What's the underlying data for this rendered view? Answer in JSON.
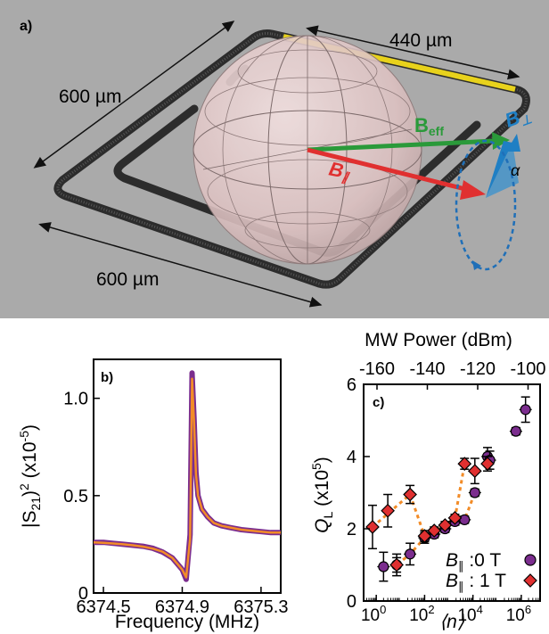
{
  "panel_a": {
    "label": "a)",
    "dim_left": "600 µm",
    "dim_bottom": "600 µm",
    "dim_top": "440 µm",
    "vec_eff_main": "B",
    "vec_eff_sub": "eff",
    "vec_par": "B",
    "vec_par_sub": "∥",
    "vec_perp": "B",
    "vec_perp_sub": "⊥",
    "angle": "α",
    "colors": {
      "background": "#a8a8a8",
      "resonator": "#3a3a3a",
      "highlight": "#e8d21c",
      "beff": "#2a9a3a",
      "bpar": "#e03030",
      "bperp": "#1f7fc4",
      "sphere": "#e8caca"
    }
  },
  "chart_data": [
    {
      "panel": "b)",
      "type": "line",
      "xlabel": "Frequency (MHz)",
      "ylabel_base": "|S",
      "ylabel_sub": "21",
      "ylabel_sup": "2",
      "ylabel_unit": " (x10",
      "ylabel_unit_sup": "-5",
      "ylabel_close": ")",
      "xticks": [
        "6374.5",
        "6374.9",
        "6375.3"
      ],
      "xtick_values": [
        6374.5,
        6374.9,
        6375.3
      ],
      "yticks": [
        "0",
        "0.5",
        "1.0"
      ],
      "ytick_values": [
        0,
        0.5,
        1.0
      ],
      "xlim": [
        6374.45,
        6375.4
      ],
      "ylim": [
        0,
        1.2
      ],
      "series": [
        {
          "role": "data",
          "color": "#7b2d8e",
          "x": [
            6374.45,
            6374.5,
            6374.55,
            6374.6,
            6374.65,
            6374.7,
            6374.75,
            6374.8,
            6374.85,
            6374.9,
            6374.92,
            6374.94,
            6374.95,
            6374.96,
            6374.97,
            6374.98,
            6375.0,
            6375.03,
            6375.06,
            6375.1,
            6375.15,
            6375.2,
            6375.25,
            6375.3,
            6375.35,
            6375.4
          ],
          "y": [
            0.26,
            0.26,
            0.255,
            0.25,
            0.245,
            0.24,
            0.23,
            0.21,
            0.18,
            0.12,
            0.07,
            0.3,
            1.13,
            0.9,
            0.62,
            0.5,
            0.43,
            0.39,
            0.36,
            0.345,
            0.335,
            0.325,
            0.32,
            0.315,
            0.31,
            0.31
          ]
        },
        {
          "role": "fit",
          "color": "#f28c28",
          "x": [
            6374.45,
            6374.5,
            6374.55,
            6374.6,
            6374.65,
            6374.7,
            6374.75,
            6374.8,
            6374.85,
            6374.9,
            6374.92,
            6374.94,
            6374.95,
            6374.96,
            6374.97,
            6374.98,
            6375.0,
            6375.03,
            6375.06,
            6375.1,
            6375.15,
            6375.2,
            6375.25,
            6375.3,
            6375.35,
            6375.4
          ],
          "y": [
            0.26,
            0.258,
            0.254,
            0.25,
            0.245,
            0.238,
            0.228,
            0.212,
            0.18,
            0.12,
            0.08,
            0.28,
            1.1,
            0.88,
            0.61,
            0.5,
            0.43,
            0.39,
            0.36,
            0.345,
            0.335,
            0.325,
            0.32,
            0.315,
            0.31,
            0.31
          ]
        }
      ]
    },
    {
      "panel": "c)",
      "type": "scatter",
      "top_axis_label": "MW Power (dBm)",
      "top_ticks": [
        "-160",
        "-140",
        "-120",
        "-100"
      ],
      "xlabel": "⟨n⟩",
      "ylabel_main": "Q",
      "ylabel_sub": "L",
      "ylabel_unit": " (x10",
      "ylabel_unit_sup": "5",
      "ylabel_close": ")",
      "xscale": "log",
      "xlim": [
        0.3,
        6000000
      ],
      "ylim": [
        0,
        6
      ],
      "yticks": [
        "0",
        "2",
        "4",
        "6"
      ],
      "ytick_values": [
        0,
        2,
        4,
        6
      ],
      "xtick_values": [
        1,
        100,
        10000,
        1000000
      ],
      "xticks_base": "10",
      "xticks_exp": [
        "0",
        "2",
        "4",
        "6"
      ],
      "series": [
        {
          "name_prefix": "B",
          "name_sub": "∥",
          "name_rest": " :0 T",
          "marker": "circle",
          "color": "#7b2d8e",
          "x": [
            2,
            7,
            25,
            100,
            250,
            700,
            1800,
            4500,
            12000,
            40000,
            50000,
            600000,
            1500000
          ],
          "y": [
            0.95,
            1.0,
            1.3,
            1.75,
            1.85,
            2.0,
            2.2,
            2.25,
            3.0,
            4.0,
            3.9,
            4.7,
            5.3
          ],
          "err": [
            0.4,
            0.3,
            0.3,
            0.15,
            0.1,
            0.1,
            0.1,
            0.1,
            0.1,
            0.25,
            0.25,
            0.1,
            0.35
          ]
        },
        {
          "name_prefix": "B",
          "name_sub": "∥",
          "name_rest": " : 1 T",
          "marker": "diamond",
          "color": "#e03030",
          "x": [
            0.7,
            3,
            7,
            25,
            100,
            250,
            700,
            1800,
            4500,
            12000,
            40000
          ],
          "y": [
            2.05,
            2.5,
            1.0,
            2.95,
            1.8,
            1.95,
            2.1,
            2.3,
            3.8,
            3.6,
            3.8
          ],
          "err": [
            0.6,
            0.45,
            0.2,
            0.25,
            0.15,
            0.1,
            0.1,
            0.1,
            0.15,
            0.35,
            0.2
          ]
        }
      ],
      "fit_color": "#f28c28"
    }
  ]
}
